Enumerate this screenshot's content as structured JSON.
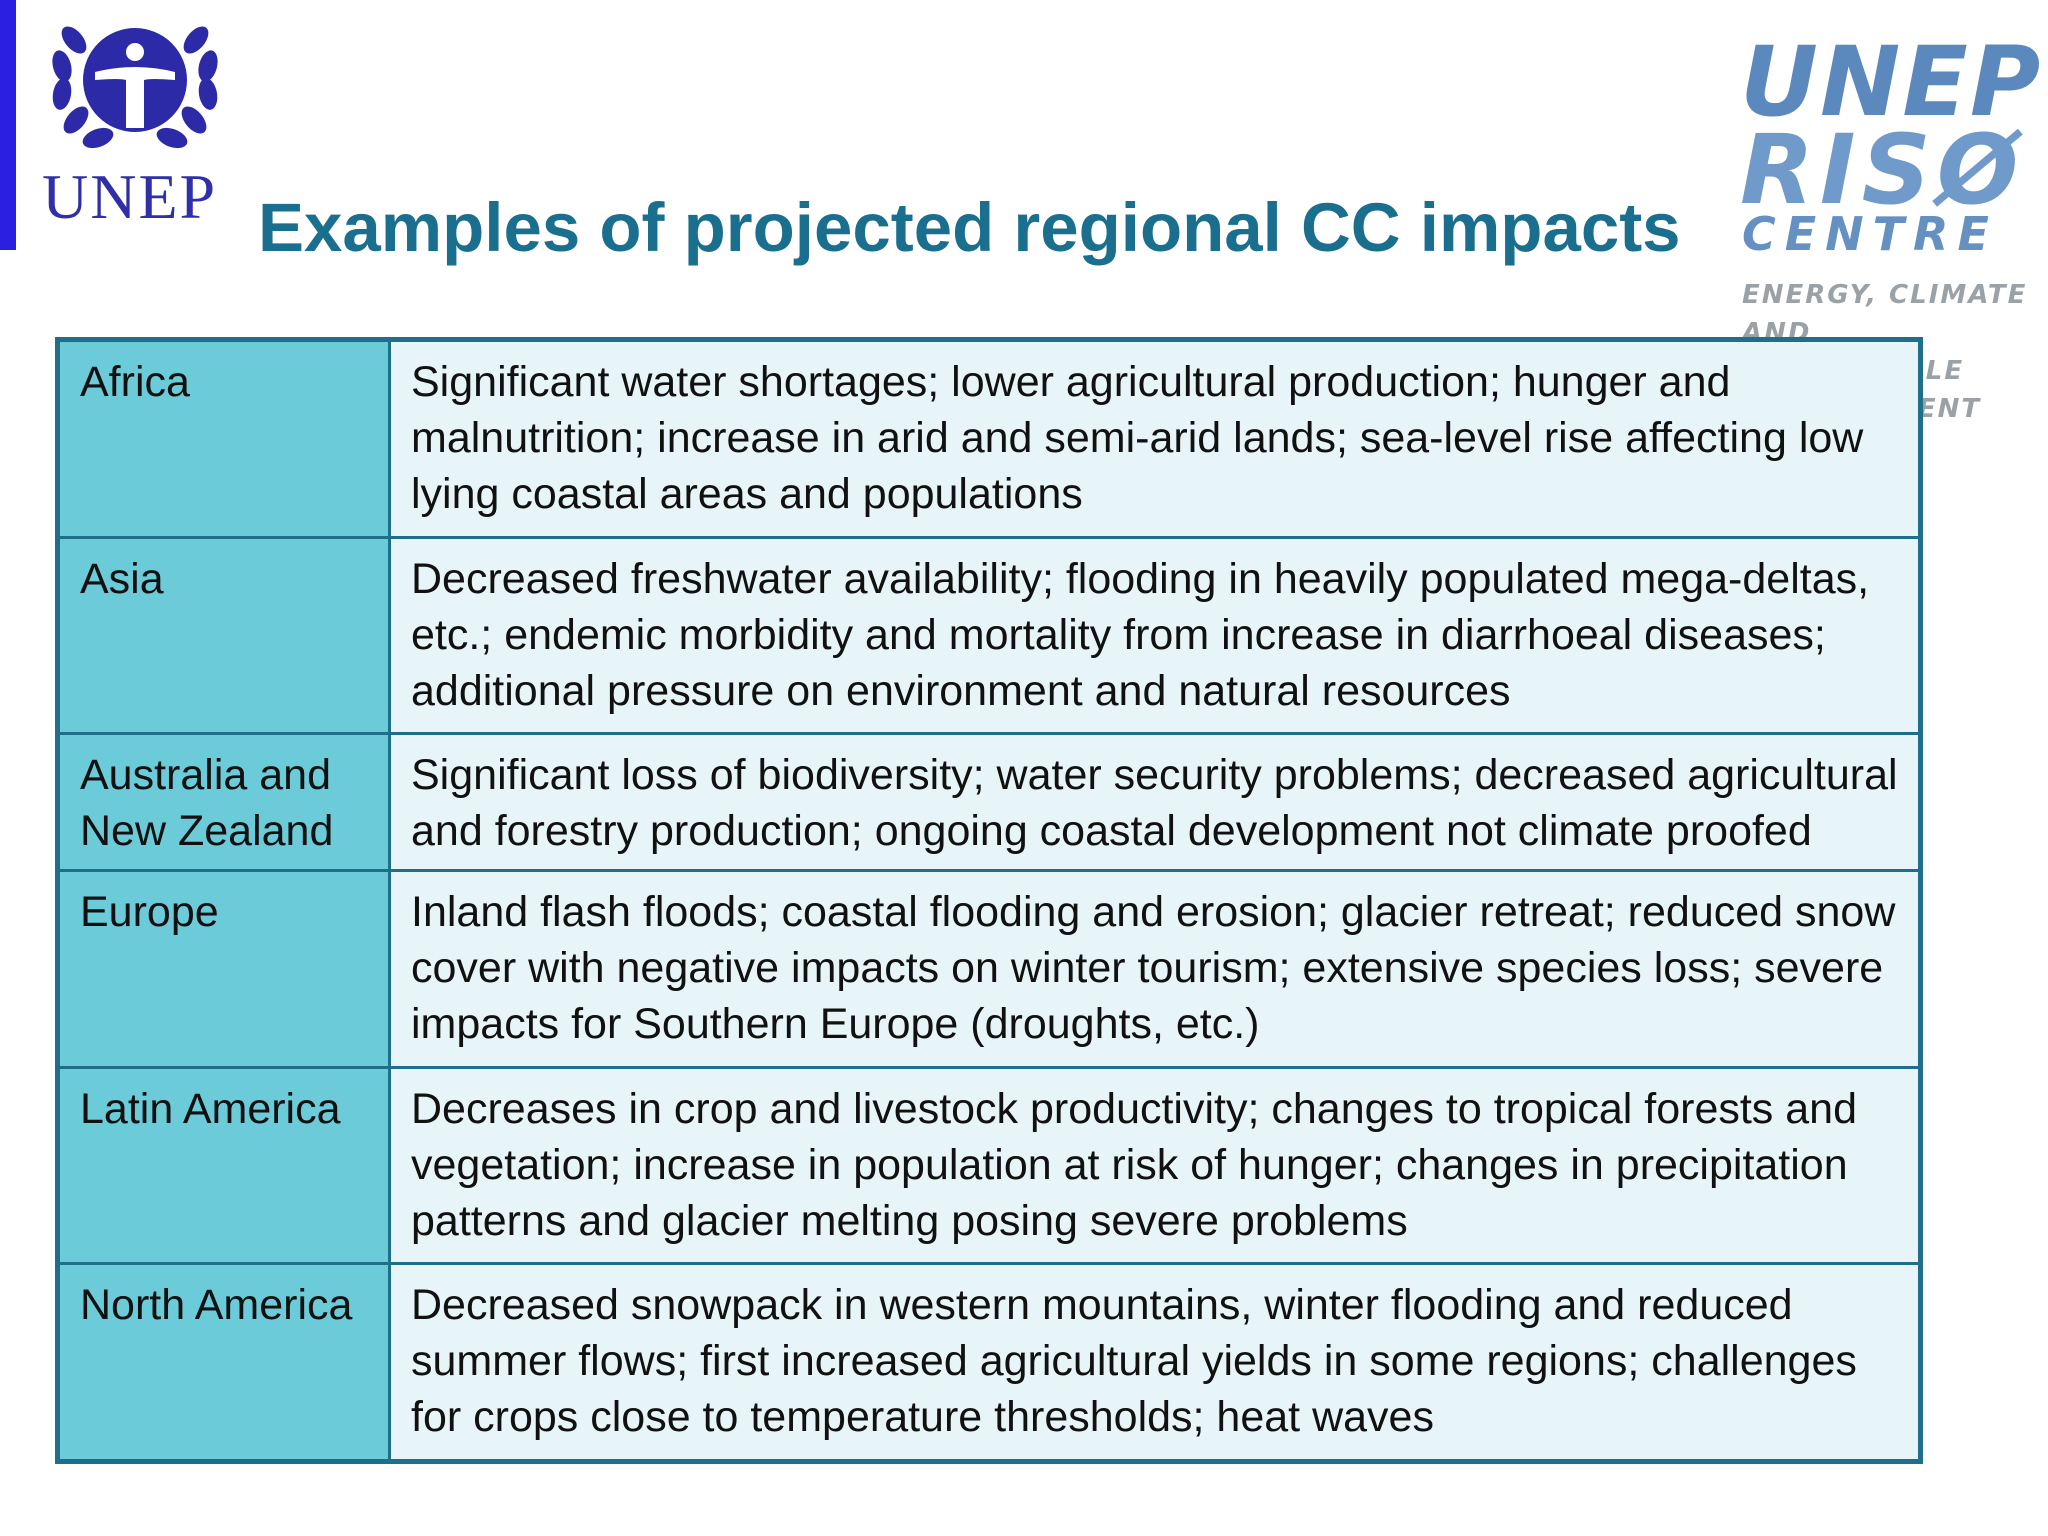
{
  "header": {
    "left_logo": {
      "icon": "unep-laurel-emblem-icon",
      "wordmark": "UNEP"
    },
    "right_logo": {
      "line1": "UNEP",
      "line2": "RISØ",
      "line3": "CENTRE",
      "tagline_line1": "ENERGY, CLIMATE",
      "tagline_line2": "AND SUSTAINABLE",
      "tagline_line3": "DEVELOPMENT"
    },
    "title": "Examples of projected regional CC impacts"
  },
  "table": {
    "rows": [
      {
        "region": "Africa",
        "impact": "Significant water shortages; lower agricultural production; hunger and malnutrition; increase in arid and semi-arid lands; sea-level rise affecting low lying coastal areas and populations"
      },
      {
        "region": "Asia",
        "impact": "Decreased freshwater availability; flooding in heavily populated mega-deltas, etc.; endemic morbidity and mortality from increase in diarrhoeal diseases; additional pressure on environment and natural resources"
      },
      {
        "region": "Australia and New Zealand",
        "impact": "Significant loss of biodiversity; water security problems; decreased agricultural and forestry production; ongoing coastal development not climate proofed"
      },
      {
        "region": "Europe",
        "impact": "Inland flash floods; coastal flooding and erosion; glacier retreat; reduced snow cover with negative impacts on winter tourism; extensive species loss; severe impacts for Southern Europe (droughts, etc.)"
      },
      {
        "region": "Latin America",
        "impact": "Decreases in crop and livestock productivity; changes to tropical forests and vegetation; increase in population at risk of hunger; changes in precipitation patterns and glacier melting posing severe problems"
      },
      {
        "region": "North America",
        "impact": "Decreased snowpack in western mountains, winter flooding and reduced summer flows; first increased agricultural yields in some regions; challenges for crops close to temperature thresholds; heat waves"
      }
    ]
  },
  "colors": {
    "title": "#1a6f8f",
    "region_cell": "#6ccbd9",
    "impact_cell": "#e7f5f8",
    "border": "#1f6f8b",
    "left_bar": "#2b20e0"
  }
}
